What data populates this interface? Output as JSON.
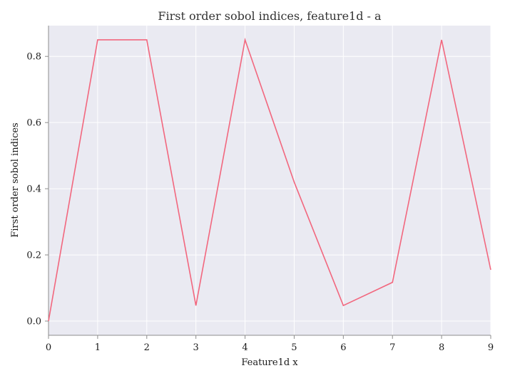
{
  "chart_data": {
    "type": "line",
    "title": "First order sobol indices, feature1d - a",
    "xlabel": "Feature1d x",
    "ylabel": "First order sobol indices",
    "x": [
      0,
      1,
      2,
      3,
      4,
      5,
      6,
      7,
      8,
      9
    ],
    "series": [
      {
        "values": [
          0.0,
          0.85,
          0.85,
          0.047,
          0.85,
          0.42,
          0.047,
          0.117,
          0.85,
          0.155
        ],
        "color": "#f2677e"
      }
    ],
    "xlim": [
      0,
      9
    ],
    "ylim": [
      -0.043,
      0.893
    ],
    "xticks": [
      0,
      1,
      2,
      3,
      4,
      5,
      6,
      7,
      8,
      9
    ],
    "xtick_labels": [
      "0",
      "1",
      "2",
      "3",
      "4",
      "5",
      "6",
      "7",
      "8",
      "9"
    ],
    "yticks": [
      0.0,
      0.2,
      0.4,
      0.6,
      0.8
    ],
    "ytick_labels": [
      "0.0",
      "0.2",
      "0.4",
      "0.6",
      "0.8"
    ],
    "grid": true,
    "background_color": "#eaeaf2"
  }
}
